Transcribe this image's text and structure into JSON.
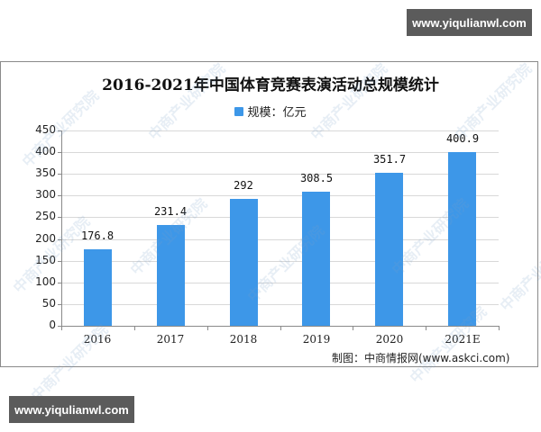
{
  "watermarks": {
    "top_banner": "www.yiqulianwl.com",
    "bottom_banner": "www.yiqulianwl.com",
    "diagonal_text": "中商产业研究院"
  },
  "source": "制图：中商情报网(www.askci.com)",
  "colors": {
    "bar": "#3d97e8",
    "grid": "#d8d8d8",
    "axis": "#8a8a8a"
  },
  "chart_data": {
    "type": "bar",
    "title": "2016-2021年中国体育竞赛表演活动总规模统计",
    "legend": [
      "规模：亿元"
    ],
    "legend_position": "top",
    "categories": [
      "2016",
      "2017",
      "2018",
      "2019",
      "2020",
      "2021E"
    ],
    "series": [
      {
        "name": "规模：亿元",
        "values": [
          176.8,
          231.4,
          292,
          308.5,
          351.7,
          400.9
        ]
      }
    ],
    "value_labels": [
      "176.8",
      "231.4",
      "292",
      "308.5",
      "351.7",
      "400.9"
    ],
    "xlabel": "",
    "ylabel": "",
    "ylim": [
      0,
      450
    ],
    "yticks": [
      0,
      50,
      100,
      150,
      200,
      250,
      300,
      350,
      400,
      450
    ],
    "grid": true
  }
}
